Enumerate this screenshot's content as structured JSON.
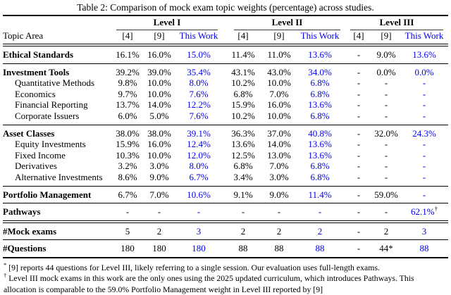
{
  "title": "Table 2: Comparison of mock exam topic weights (percentage) across studies.",
  "colors": {
    "accent_blue": "#0000EE",
    "text": "#000000"
  },
  "table": {
    "topic_header": "Topic Area",
    "groups": [
      "Level I",
      "Level II",
      "Level III"
    ],
    "col_headers": [
      "[4]",
      "[9]",
      "This Work"
    ],
    "this_work_columns": [
      2,
      5,
      8
    ],
    "sections": [
      {
        "rule_above": "none",
        "rows": [
          {
            "label": "Ethical Standards",
            "bold": true,
            "indent": false,
            "values": [
              "16.1%",
              "16.0%",
              "15.0%",
              "11.4%",
              "11.0%",
              "13.6%",
              "-",
              "9.0%",
              "13.6%"
            ]
          }
        ]
      },
      {
        "rule_above": "single",
        "rows": [
          {
            "label": "Investment Tools",
            "bold": true,
            "indent": false,
            "values": [
              "39.2%",
              "39.0%",
              "35.4%",
              "43.1%",
              "43.0%",
              "34.0%",
              "-",
              "0.0%",
              "0.0%"
            ]
          },
          {
            "label": "Quantitative Methods",
            "bold": false,
            "indent": true,
            "values": [
              "9.8%",
              "10.0%",
              "8.0%",
              "10.2%",
              "10.0%",
              "6.8%",
              "-",
              "-",
              "-"
            ]
          },
          {
            "label": "Economics",
            "bold": false,
            "indent": true,
            "values": [
              "9.7%",
              "10.0%",
              "7.6%",
              "6.8%",
              "7.0%",
              "6.8%",
              "-",
              "-",
              "-"
            ]
          },
          {
            "label": "Financial Reporting",
            "bold": false,
            "indent": true,
            "values": [
              "13.7%",
              "14.0%",
              "12.2%",
              "15.9%",
              "16.0%",
              "13.6%",
              "-",
              "-",
              "-"
            ]
          },
          {
            "label": "Corporate Issuers",
            "bold": false,
            "indent": true,
            "values": [
              "6.0%",
              "5.0%",
              "7.6%",
              "10.2%",
              "10.0%",
              "6.8%",
              "-",
              "-",
              "-"
            ]
          }
        ]
      },
      {
        "rule_above": "single",
        "rows": [
          {
            "label": "Asset Classes",
            "bold": true,
            "indent": false,
            "values": [
              "38.0%",
              "38.0%",
              "39.1%",
              "36.3%",
              "37.0%",
              "40.8%",
              "-",
              "32.0%",
              "24.3%"
            ]
          },
          {
            "label": "Equity Investments",
            "bold": false,
            "indent": true,
            "values": [
              "15.9%",
              "16.0%",
              "12.4%",
              "13.6%",
              "14.0%",
              "13.6%",
              "-",
              "-",
              "-"
            ]
          },
          {
            "label": "Fixed Income",
            "bold": false,
            "indent": true,
            "values": [
              "10.3%",
              "10.0%",
              "12.0%",
              "12.5%",
              "13.0%",
              "13.6%",
              "-",
              "-",
              "-"
            ]
          },
          {
            "label": "Derivatives",
            "bold": false,
            "indent": true,
            "values": [
              "3.2%",
              "3.0%",
              "8.0%",
              "6.8%",
              "7.0%",
              "6.8%",
              "-",
              "-",
              "-"
            ]
          },
          {
            "label": "Alternative Investments",
            "bold": false,
            "indent": true,
            "values": [
              "8.6%",
              "9.0%",
              "6.7%",
              "3.4%",
              "3.0%",
              "6.8%",
              "-",
              "-",
              "-"
            ]
          }
        ]
      },
      {
        "rule_above": "single",
        "rows": [
          {
            "label": "Portfolio Management",
            "bold": true,
            "indent": false,
            "values": [
              "6.7%",
              "7.0%",
              "10.6%",
              "9.1%",
              "9.0%",
              "11.4%",
              "-",
              "59.0%",
              "-"
            ]
          }
        ]
      },
      {
        "rule_above": "single",
        "rows": [
          {
            "label": "Pathways",
            "bold": true,
            "indent": false,
            "values": [
              "-",
              "-",
              "-",
              "-",
              "-",
              "-",
              "-",
              "-",
              "62.1%†"
            ]
          }
        ]
      },
      {
        "rule_above": "double",
        "rows": [
          {
            "label": "#Mock exams",
            "bold": true,
            "indent": false,
            "values": [
              "5",
              "2",
              "3",
              "2",
              "2",
              "2",
              "-",
              "2",
              "3"
            ]
          }
        ]
      },
      {
        "rule_above": "single",
        "rows": [
          {
            "label": "#Questions",
            "bold": true,
            "indent": false,
            "values": [
              "180",
              "180",
              "180",
              "88",
              "88",
              "88",
              "-",
              "44*",
              "88"
            ]
          }
        ]
      }
    ]
  },
  "footnotes": [
    {
      "marker": "*",
      "text": "[9] reports 44 questions for Level III, likely referring to a single session. Our evaluation uses full-length exams."
    },
    {
      "marker": "†",
      "text": "Level III mock exams in this work are the only ones using the 2025 updated curriculum, which introduces Pathways. This allocation is comparable to the 59.0% Portfolio Management weight in Level III reported by [9]"
    }
  ]
}
